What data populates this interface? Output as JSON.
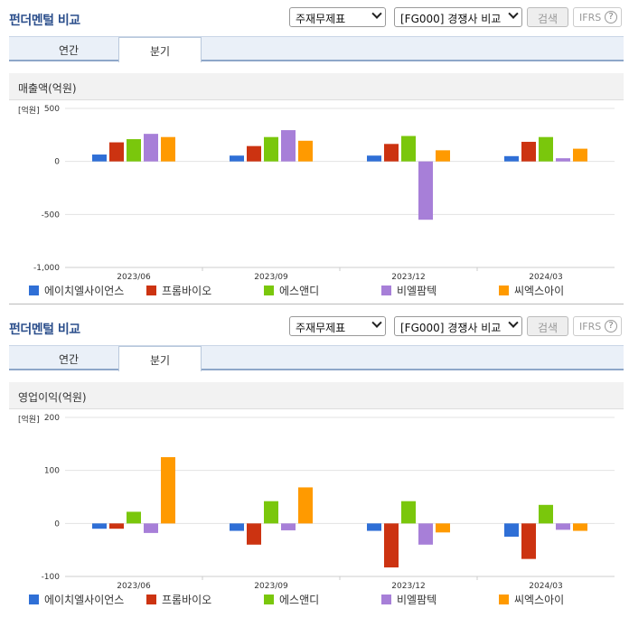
{
  "panels": [
    {
      "header": {
        "title": "펀더멘털 비교",
        "select1": "주재무제표",
        "select2": "[FG000] 경쟁사 비교",
        "search_label": "검색",
        "ifrs_label": "IFRS",
        "help": "?"
      },
      "tabs": [
        {
          "label": "연간"
        },
        {
          "label": "분기"
        }
      ],
      "active_tab": 1,
      "subheader": "매출액(억원)",
      "chart_data": {
        "type": "bar",
        "unit_label": "[억원]",
        "categories": [
          "2023/06",
          "2023/09",
          "2023/12",
          "2024/03"
        ],
        "ylim": [
          -1000,
          500
        ],
        "yticks": [
          "500",
          "0",
          "-500",
          "-1,000"
        ],
        "ytick_values": [
          500,
          0,
          -500,
          -1000
        ],
        "series": [
          {
            "name": "에이치엘사이언스",
            "color": "#2f6fd6",
            "values": [
              65,
              55,
              55,
              50
            ]
          },
          {
            "name": "프롬바이오",
            "color": "#cc3311",
            "values": [
              180,
              145,
              165,
              185
            ]
          },
          {
            "name": "에스앤디",
            "color": "#7ac70c",
            "values": [
              210,
              230,
              240,
              230
            ]
          },
          {
            "name": "비엘팜텍",
            "color": "#a77fd8",
            "values": [
              260,
              295,
              -550,
              30
            ]
          },
          {
            "name": "씨엑스아이",
            "color": "#ff9a00",
            "values": [
              230,
              195,
              105,
              120
            ]
          }
        ]
      }
    },
    {
      "header": {
        "title": "펀더멘털 비교",
        "select1": "주재무제표",
        "select2": "[FG000] 경쟁사 비교",
        "search_label": "검색",
        "ifrs_label": "IFRS",
        "help": "?"
      },
      "tabs": [
        {
          "label": "연간"
        },
        {
          "label": "분기"
        }
      ],
      "active_tab": 1,
      "subheader": "영업이익(억원)",
      "chart_data": {
        "type": "bar",
        "unit_label": "[억원]",
        "categories": [
          "2023/06",
          "2023/09",
          "2023/12",
          "2024/03"
        ],
        "ylim": [
          -100,
          200
        ],
        "yticks": [
          "200",
          "100",
          "0",
          "-100"
        ],
        "ytick_values": [
          200,
          100,
          0,
          -100
        ],
        "series": [
          {
            "name": "에이치엘사이언스",
            "color": "#2f6fd6",
            "values": [
              -10,
              -14,
              -14,
              -25
            ]
          },
          {
            "name": "프롬바이오",
            "color": "#cc3311",
            "values": [
              -10,
              -40,
              -83,
              -67
            ]
          },
          {
            "name": "에스앤디",
            "color": "#7ac70c",
            "values": [
              22,
              42,
              42,
              35
            ]
          },
          {
            "name": "비엘팜텍",
            "color": "#a77fd8",
            "values": [
              -18,
              -13,
              -40,
              -12
            ]
          },
          {
            "name": "씨엑스아이",
            "color": "#ff9a00",
            "values": [
              125,
              68,
              -17,
              -14
            ]
          }
        ]
      }
    }
  ]
}
